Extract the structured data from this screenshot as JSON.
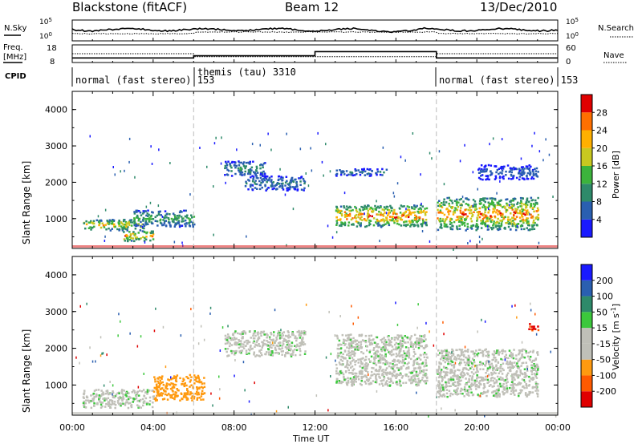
{
  "header": {
    "station": "Blackstone (fitACF)",
    "beam": "Beam 12",
    "date": "13/Dec/2010"
  },
  "strips": {
    "nsky": {
      "label": "N.Sky",
      "tick_top": "10^5",
      "tick_bottom": "10^0"
    },
    "nsearch": {
      "label": "N.Search",
      "tick_top": "10^5",
      "tick_bottom": "10^0"
    },
    "freq": {
      "label_line1": "Freq.",
      "label_line2": "[MHz]",
      "tick_top": "18",
      "tick_bottom": "8"
    },
    "nave": {
      "label": "Nave",
      "tick_top": "60",
      "tick_bottom": "0"
    },
    "cpid": {
      "label": "CPID"
    }
  },
  "modes": [
    {
      "start": 0,
      "end": 6,
      "name": "normal (fast stereo) 153"
    },
    {
      "start": 6,
      "end": 18,
      "name": "themis (tau) 3310"
    },
    {
      "start": 18,
      "end": 24,
      "name": "normal (fast stereo) 153"
    }
  ],
  "colors": {
    "power_scale": [
      "#1a1aff",
      "#2a5fb0",
      "#2e8a6a",
      "#3cb33c",
      "#c8c820",
      "#ffb000",
      "#ff7000",
      "#e00000"
    ],
    "velocity_scale": [
      "#e00000",
      "#ff5a00",
      "#ff9a10",
      "#c0c0b8",
      "#c0c0b8",
      "#3cc83c",
      "#2e8a6a",
      "#2a5fb0",
      "#1a1aff"
    ]
  },
  "chart_data": [
    {
      "type": "heatmap",
      "name": "power",
      "ylabel": "Slant Range [km]",
      "xlabel": "Time UT",
      "xlim": [
        0,
        24
      ],
      "ylim": [
        180,
        4500
      ],
      "x_ticks": [
        "00:00",
        "04:00",
        "08:00",
        "12:00",
        "16:00",
        "20:00",
        "00:00"
      ],
      "y_ticks": [
        "1000",
        "2000",
        "3000",
        "4000"
      ],
      "colorbar": {
        "label": "Power [dB]",
        "ticks": [
          "4",
          "8",
          "12",
          "16",
          "20",
          "24",
          "28"
        ],
        "range": [
          0,
          30
        ]
      },
      "scatter_regions": [
        {
          "t0": 0.5,
          "t1": 3.5,
          "r0": 700,
          "r1": 1000,
          "peak": 22
        },
        {
          "t0": 2.5,
          "t1": 4.0,
          "r0": 400,
          "r1": 700,
          "peak": 26
        },
        {
          "t0": 3.0,
          "t1": 6.0,
          "r0": 800,
          "r1": 1250,
          "peak": 14
        },
        {
          "t0": 7.5,
          "t1": 9.5,
          "r0": 2200,
          "r1": 2600,
          "peak": 12
        },
        {
          "t0": 8.5,
          "t1": 11.5,
          "r0": 1800,
          "r1": 2200,
          "peak": 10
        },
        {
          "t0": 13.0,
          "t1": 17.5,
          "r0": 800,
          "r1": 1400,
          "peak": 28
        },
        {
          "t0": 13.0,
          "t1": 15.5,
          "r0": 2200,
          "r1": 2400,
          "peak": 9
        },
        {
          "t0": 18.0,
          "t1": 23.0,
          "r0": 700,
          "r1": 1600,
          "peak": 27
        },
        {
          "t0": 20.0,
          "t1": 23.0,
          "r0": 2100,
          "r1": 2500,
          "peak": 7
        }
      ]
    },
    {
      "type": "heatmap",
      "name": "velocity",
      "ylabel": "Slant Range [km]",
      "xlabel": "Time UT",
      "xlim": [
        0,
        24
      ],
      "ylim": [
        180,
        4500
      ],
      "x_ticks": [
        "00:00",
        "04:00",
        "08:00",
        "12:00",
        "16:00",
        "20:00",
        "00:00"
      ],
      "y_ticks": [
        "1000",
        "2000",
        "3000",
        "4000"
      ],
      "colorbar": {
        "label": "Velocity [m s-1]",
        "label_main": "Velocity [m s",
        "label_sup": "-1",
        "label_end": "]",
        "ticks": [
          "200",
          "100",
          "50",
          "15",
          "-15",
          "-50",
          "-100",
          "-200"
        ]
      },
      "scatter_regions": [
        {
          "t0": 0.5,
          "t1": 4.0,
          "r0": 400,
          "r1": 900,
          "v": 0
        },
        {
          "t0": 4.0,
          "t1": 6.5,
          "r0": 600,
          "r1": 1300,
          "v": -70
        },
        {
          "t0": 7.5,
          "t1": 11.5,
          "r0": 1800,
          "r1": 2500,
          "v": 0
        },
        {
          "t0": 13.0,
          "t1": 17.5,
          "r0": 1000,
          "r1": 2400,
          "v": 0
        },
        {
          "t0": 18.0,
          "t1": 23.0,
          "r0": 700,
          "r1": 2000,
          "v": 0
        },
        {
          "t0": 22.5,
          "t1": 23.0,
          "r0": 2500,
          "r1": 2700,
          "v": -200
        }
      ]
    }
  ]
}
